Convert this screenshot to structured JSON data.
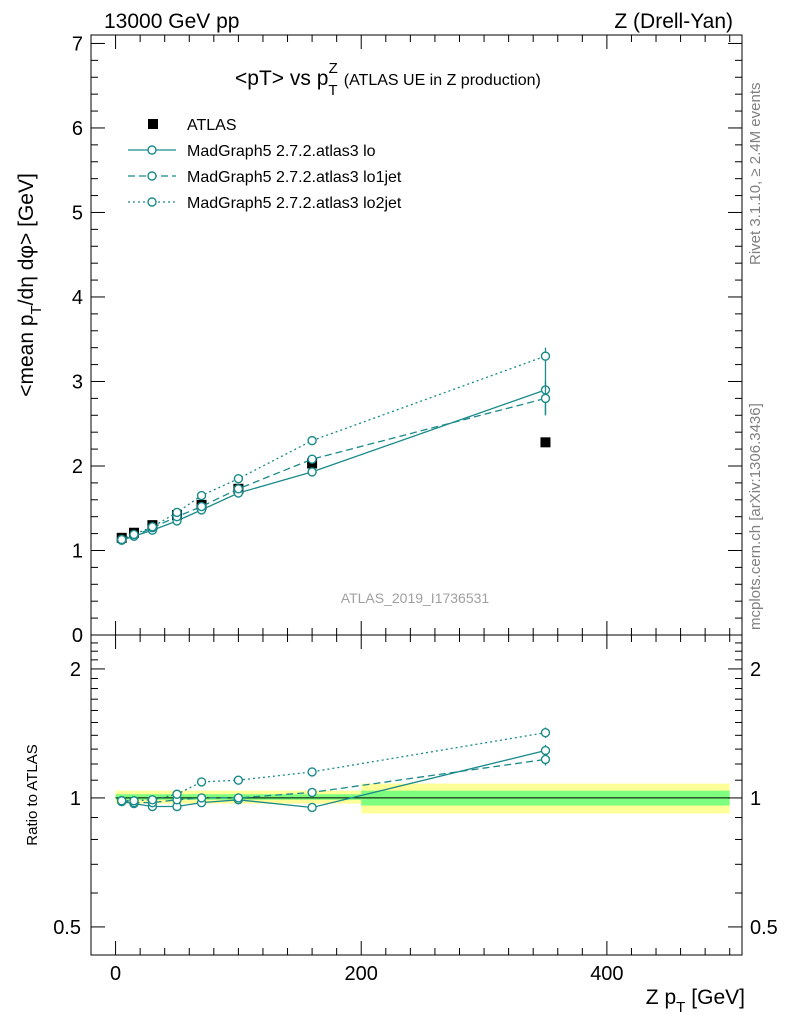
{
  "header": {
    "left": "13000 GeV pp",
    "right": "Z (Drell-Yan)"
  },
  "side_labels": {
    "rivet": "Rivet 3.1.10, ≥ 2.4M events",
    "mcplots": "mcplots.cern.ch [arXiv:1306.3436]"
  },
  "watermark": "ATLAS_2019_I1736531",
  "chart_data": [
    {
      "type": "line",
      "title_main": "<pT> vs p",
      "title_sub": "T",
      "title_sup": "Z",
      "title_rest": "(ATLAS UE in Z production)",
      "ylabel": "<mean p_T/dη dφ> [GeV]",
      "xlabel": "",
      "xlim": [
        -20,
        510
      ],
      "ylim": [
        0,
        7.1
      ],
      "x_ticks": [
        0,
        200,
        400
      ],
      "y_ticks": [
        0,
        1,
        2,
        3,
        4,
        5,
        6,
        7
      ],
      "legend_position": "top-left",
      "series": [
        {
          "name": "ATLAS",
          "marker": "filled-square",
          "color": "#000000",
          "x": [
            5,
            15,
            30,
            50,
            70,
            100,
            160,
            350
          ],
          "y": [
            1.15,
            1.21,
            1.3,
            1.42,
            1.54,
            1.73,
            2.03,
            2.28
          ]
        },
        {
          "name": "MadGraph5 2.7.2.atlas3 lo",
          "line": "solid",
          "color": "#1a8a8a",
          "x": [
            5,
            15,
            30,
            50,
            70,
            100,
            160,
            350
          ],
          "y": [
            1.12,
            1.17,
            1.24,
            1.35,
            1.48,
            1.68,
            1.93,
            2.9
          ],
          "yerr": [
            0.02,
            0.02,
            0.02,
            0.02,
            0.02,
            0.03,
            0.04,
            0.3
          ]
        },
        {
          "name": "MadGraph5 2.7.2.atlas3 lo1jet",
          "line": "dashed",
          "color": "#1a8a8a",
          "x": [
            5,
            15,
            30,
            50,
            70,
            100,
            160,
            350
          ],
          "y": [
            1.13,
            1.17,
            1.27,
            1.4,
            1.52,
            1.73,
            2.08,
            2.8
          ],
          "yerr": [
            0.02,
            0.02,
            0.02,
            0.02,
            0.02,
            0.03,
            0.03,
            0.2
          ]
        },
        {
          "name": "MadGraph5 2.7.2.atlas3 lo2jet",
          "line": "dotted",
          "color": "#1a8a8a",
          "x": [
            5,
            15,
            30,
            50,
            70,
            100,
            160,
            350
          ],
          "y": [
            1.13,
            1.19,
            1.28,
            1.45,
            1.65,
            1.85,
            2.3,
            3.3
          ],
          "yerr": [
            0.02,
            0.02,
            0.02,
            0.02,
            0.02,
            0.02,
            0.03,
            0.1
          ]
        }
      ]
    },
    {
      "type": "line",
      "ylabel": "Ratio to ATLAS",
      "xlabel": "Z p_T [GeV]",
      "xlabel_main": "Z p",
      "xlabel_sub": "T",
      "xlabel_unit": "[GeV]",
      "xlim": [
        -20,
        510
      ],
      "ylim": [
        0.43,
        2.4
      ],
      "y_scale": "log",
      "x_ticks": [
        0,
        200,
        400
      ],
      "y_ticks": [
        0.5,
        1,
        2
      ],
      "bands": [
        {
          "name": "stat",
          "color": "#7fff7f",
          "x": [
            [
              0,
              200
            ],
            [
              200,
              500
            ]
          ],
          "low": [
            0.99,
            0.96
          ],
          "high": [
            1.02,
            1.04
          ]
        },
        {
          "name": "total",
          "color": "#ffff99",
          "x": [
            [
              0,
              200
            ],
            [
              200,
              500
            ]
          ],
          "low": [
            0.97,
            0.92
          ],
          "high": [
            1.04,
            1.08
          ]
        }
      ],
      "series": [
        {
          "name": "MadGraph5 2.7.2.atlas3 lo",
          "line": "solid",
          "color": "#1a8a8a",
          "x": [
            5,
            15,
            30,
            50,
            70,
            100,
            160,
            350
          ],
          "y": [
            0.98,
            0.97,
            0.955,
            0.955,
            0.975,
            0.99,
            0.95,
            1.29
          ],
          "yerr": [
            0.01,
            0.01,
            0.01,
            0.01,
            0.01,
            0.01,
            0.015,
            0.04
          ]
        },
        {
          "name": "MadGraph5 2.7.2.atlas3 lo1jet",
          "line": "dashed",
          "color": "#1a8a8a",
          "x": [
            5,
            15,
            30,
            50,
            70,
            100,
            160,
            350
          ],
          "y": [
            0.985,
            0.975,
            0.975,
            0.99,
            1.0,
            1.0,
            1.03,
            1.23
          ],
          "yerr": [
            0.01,
            0.01,
            0.01,
            0.01,
            0.01,
            0.01,
            0.01,
            0.04
          ]
        },
        {
          "name": "MadGraph5 2.7.2.atlas3 lo2jet",
          "line": "dotted",
          "color": "#1a8a8a",
          "x": [
            5,
            15,
            30,
            50,
            70,
            100,
            160,
            350
          ],
          "y": [
            0.985,
            0.985,
            0.99,
            1.02,
            1.09,
            1.1,
            1.15,
            1.42
          ],
          "yerr": [
            0.01,
            0.01,
            0.01,
            0.01,
            0.01,
            0.01,
            0.01,
            0.04
          ]
        }
      ]
    }
  ]
}
